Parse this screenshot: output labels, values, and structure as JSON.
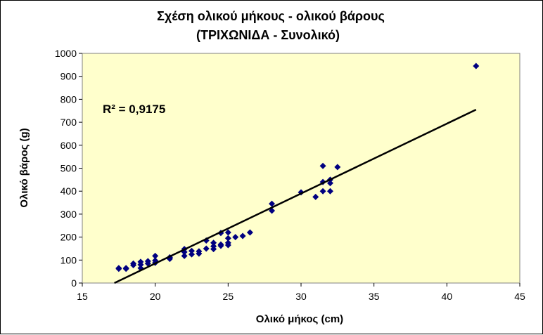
{
  "chart_data": {
    "type": "scatter",
    "title": "Σχέση ολικού  μήκους - ολικού  βάρους",
    "subtitle": "(ΤΡΙΧΩΝΙΔΑ - Συνολικό)",
    "xlabel": "Ολικό μήκος (cm)",
    "ylabel": "Ολικό βάρος (g)",
    "xlim": [
      15,
      45
    ],
    "ylim": [
      0,
      1000
    ],
    "x_ticks": [
      15,
      20,
      25,
      30,
      35,
      40,
      45
    ],
    "y_ticks": [
      0,
      100,
      200,
      300,
      400,
      500,
      600,
      700,
      800,
      900,
      1000
    ],
    "plot_background": "#ffffcc",
    "marker_color": "#000080",
    "trendline": {
      "type": "linear",
      "x": [
        17.2,
        42
      ],
      "y": [
        0,
        755
      ],
      "color": "#000000"
    },
    "annotation": "R² = 0,9175",
    "legend": "none",
    "grid": false,
    "points": [
      [
        17.5,
        62
      ],
      [
        17.5,
        65
      ],
      [
        18,
        62
      ],
      [
        18,
        65
      ],
      [
        18.5,
        78
      ],
      [
        18.5,
        85
      ],
      [
        19,
        65
      ],
      [
        19,
        80
      ],
      [
        19,
        92
      ],
      [
        19.5,
        85
      ],
      [
        19.5,
        95
      ],
      [
        20,
        88
      ],
      [
        20,
        98
      ],
      [
        20,
        118
      ],
      [
        21,
        105
      ],
      [
        21,
        112
      ],
      [
        22,
        118
      ],
      [
        22,
        135
      ],
      [
        22,
        148
      ],
      [
        22.5,
        125
      ],
      [
        22.5,
        140
      ],
      [
        23,
        128
      ],
      [
        23,
        138
      ],
      [
        23.5,
        150
      ],
      [
        23.5,
        185
      ],
      [
        24,
        148
      ],
      [
        24,
        160
      ],
      [
        24,
        175
      ],
      [
        24.5,
        162
      ],
      [
        24.5,
        168
      ],
      [
        24.5,
        218
      ],
      [
        25,
        165
      ],
      [
        25,
        175
      ],
      [
        25,
        195
      ],
      [
        25,
        220
      ],
      [
        25.5,
        200
      ],
      [
        26,
        205
      ],
      [
        26.5,
        220
      ],
      [
        28,
        315
      ],
      [
        28,
        345
      ],
      [
        30,
        395
      ],
      [
        31,
        375
      ],
      [
        31.5,
        400
      ],
      [
        31.5,
        440
      ],
      [
        31.5,
        510
      ],
      [
        32,
        400
      ],
      [
        32,
        435
      ],
      [
        32,
        450
      ],
      [
        32.5,
        505
      ],
      [
        42,
        945
      ]
    ]
  }
}
